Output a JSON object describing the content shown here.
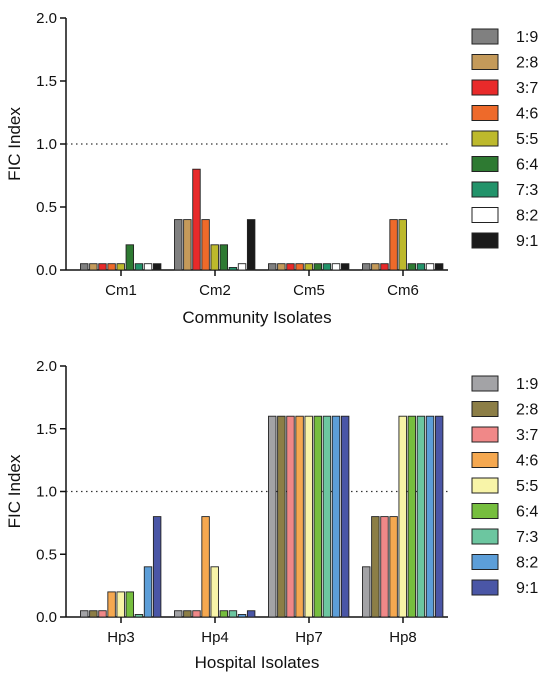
{
  "chart_data": [
    {
      "type": "bar",
      "xlabel": "Community Isolates",
      "ylabel": "FIC Index",
      "ylim": [
        0,
        2.0
      ],
      "yticks": [
        "0.0",
        "0.5",
        "1.0",
        "1.5",
        "2.0"
      ],
      "reference_line": 1.0,
      "grid": false,
      "legend_position": "right",
      "categories": [
        "Cm1",
        "Cm2",
        "Cm5",
        "Cm6"
      ],
      "series": [
        {
          "name": "1:9",
          "color": "#808080",
          "values": [
            0.05,
            0.4,
            0.05,
            0.05
          ]
        },
        {
          "name": "2:8",
          "color": "#C49A5A",
          "values": [
            0.05,
            0.4,
            0.05,
            0.05
          ]
        },
        {
          "name": "3:7",
          "color": "#E82A2A",
          "values": [
            0.05,
            0.8,
            0.05,
            0.05
          ]
        },
        {
          "name": "4:6",
          "color": "#EE6A2A",
          "values": [
            0.05,
            0.4,
            0.05,
            0.4
          ]
        },
        {
          "name": "5:5",
          "color": "#BDB92C",
          "values": [
            0.05,
            0.2,
            0.05,
            0.4
          ]
        },
        {
          "name": "6:4",
          "color": "#2E7A32",
          "values": [
            0.2,
            0.2,
            0.05,
            0.05
          ]
        },
        {
          "name": "7:3",
          "color": "#22936A",
          "values": [
            0.05,
            0.02,
            0.05,
            0.05
          ]
        },
        {
          "name": "8:2",
          "color": "#FFFFFF",
          "values": [
            0.05,
            0.05,
            0.05,
            0.05
          ]
        },
        {
          "name": "9:1",
          "color": "#1A1A1A",
          "values": [
            0.05,
            0.4,
            0.05,
            0.05
          ]
        }
      ]
    },
    {
      "type": "bar",
      "xlabel": "Hospital Isolates",
      "ylabel": "FIC Index",
      "ylim": [
        0,
        2.0
      ],
      "yticks": [
        "0.0",
        "0.5",
        "1.0",
        "1.5",
        "2.0"
      ],
      "reference_line": 1.0,
      "grid": false,
      "legend_position": "right",
      "categories": [
        "Hp3",
        "Hp4",
        "Hp7",
        "Hp8"
      ],
      "series": [
        {
          "name": "1:9",
          "color": "#A3A3A6",
          "values": [
            0.05,
            0.05,
            1.6,
            0.4
          ]
        },
        {
          "name": "2:8",
          "color": "#8C7E46",
          "values": [
            0.05,
            0.05,
            1.6,
            0.8
          ]
        },
        {
          "name": "3:7",
          "color": "#F08888",
          "values": [
            0.05,
            0.05,
            1.6,
            0.8
          ]
        },
        {
          "name": "4:6",
          "color": "#F5A850",
          "values": [
            0.2,
            0.8,
            1.6,
            0.8
          ]
        },
        {
          "name": "5:5",
          "color": "#F8F4A8",
          "values": [
            0.2,
            0.4,
            1.6,
            1.6
          ]
        },
        {
          "name": "6:4",
          "color": "#76BE3E",
          "values": [
            0.2,
            0.05,
            1.6,
            1.6
          ]
        },
        {
          "name": "7:3",
          "color": "#6CC6A0",
          "values": [
            0.02,
            0.05,
            1.6,
            1.6
          ]
        },
        {
          "name": "8:2",
          "color": "#5C9ED8",
          "values": [
            0.4,
            0.02,
            1.6,
            1.6
          ]
        },
        {
          "name": "9:1",
          "color": "#4A56A6",
          "values": [
            0.8,
            0.05,
            1.6,
            1.6
          ]
        }
      ]
    }
  ]
}
